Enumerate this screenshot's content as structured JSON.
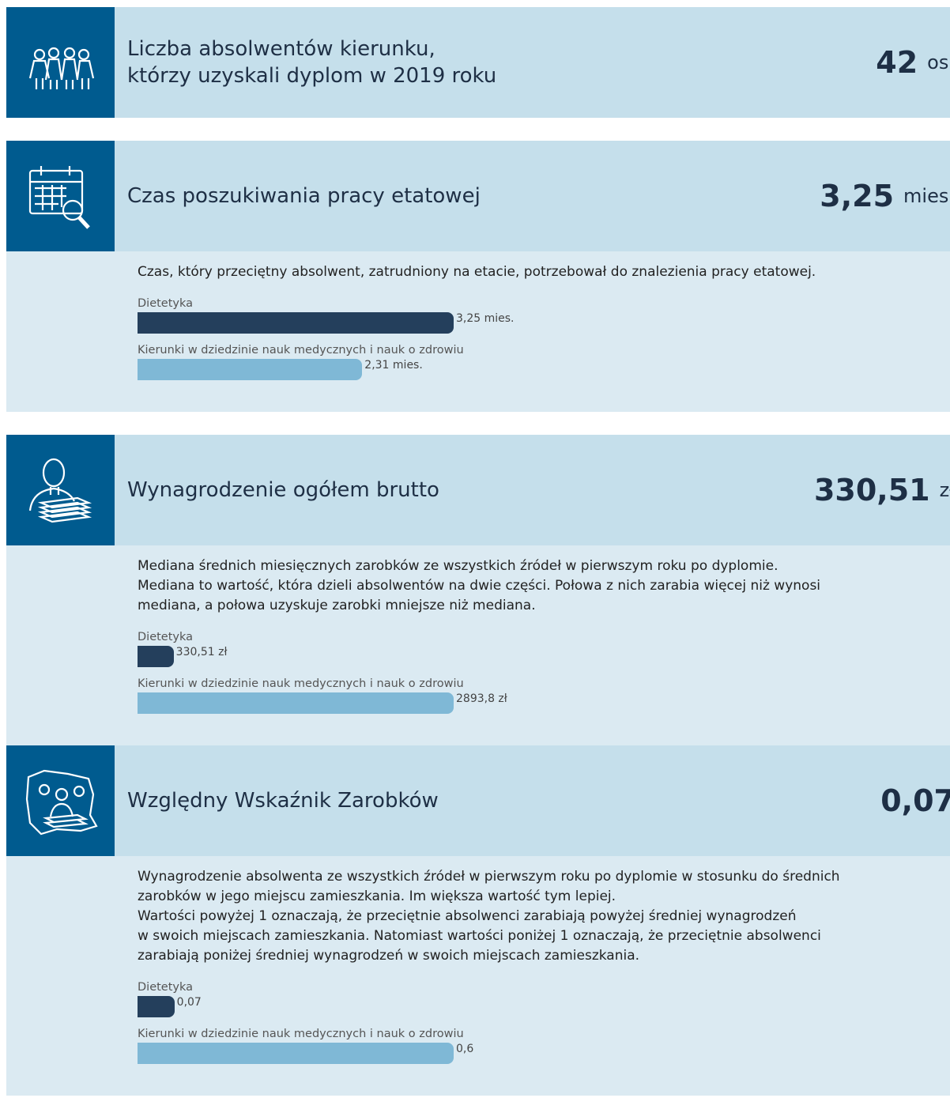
{
  "sections": [
    {
      "title_lines": [
        "Liczba absolwentów kierunku,",
        "którzy uzyskali dyplom w 2019 roku"
      ],
      "value": "42",
      "unit": "os."
    },
    {
      "title_lines": [
        "Czas poszukiwania pracy etatowej"
      ],
      "value": "3,25",
      "unit": "mies.",
      "description": [
        "Czas, który przeciętny absolwent, zatrudniony na etacie, potrzebował do znalezienia pracy etatowej."
      ],
      "bars": [
        {
          "label": "Dietetyka",
          "value": 3.25,
          "value_label": "3,25 mies."
        },
        {
          "label": "Kierunki w dziedzinie nauk medycznych i nauk o zdrowiu",
          "value": 2.31,
          "value_label": "2,31 mies."
        }
      ]
    },
    {
      "title_lines": [
        "Wynagrodzenie ogółem brutto"
      ],
      "value": "330,51",
      "unit": "zł",
      "description": [
        "Mediana średnich miesięcznych zarobków ze wszystkich źródeł w pierwszym roku po dyplomie.",
        "Mediana to wartość, która dzieli absolwentów na dwie części. Połowa z nich zarabia więcej niż wynosi",
        "mediana, a połowa uzyskuje zarobki mniejsze niż mediana."
      ],
      "bars": [
        {
          "label": "Dietetyka",
          "value": 330.51,
          "value_label": "330,51 zł"
        },
        {
          "label": "Kierunki w dziedzinie nauk medycznych i nauk o zdrowiu",
          "value": 2893.8,
          "value_label": "2893,8 zł"
        }
      ]
    },
    {
      "title_lines": [
        "Względny Wskaźnik Zarobków"
      ],
      "value": "0,07",
      "description": [
        "Wynagrodzenie absolwenta ze wszystkich źródeł w pierwszym roku po dyplomie w stosunku do średnich",
        "zarobków w jego miejscu zamieszkania. Im większa wartość tym lepiej.",
        "Wartości powyżej 1 oznaczają, że przeciętnie absolwenci zarabiają powyżej średniej wynagrodzeń",
        "w swoich miejscach zamieszkania. Natomiast wartości poniżej 1 oznaczają, że przeciętnie absolwenci",
        "zarabiają poniżej średniej wynagrodzeń w swoich miejscach zamieszkania."
      ],
      "bars": [
        {
          "label": "Dietetyka",
          "value": 0.07,
          "value_label": "0,07"
        },
        {
          "label": "Kierunki w dziedzinie nauk medycznych i nauk o zdrowiu",
          "value": 0.6,
          "value_label": "0,6"
        }
      ]
    }
  ]
}
